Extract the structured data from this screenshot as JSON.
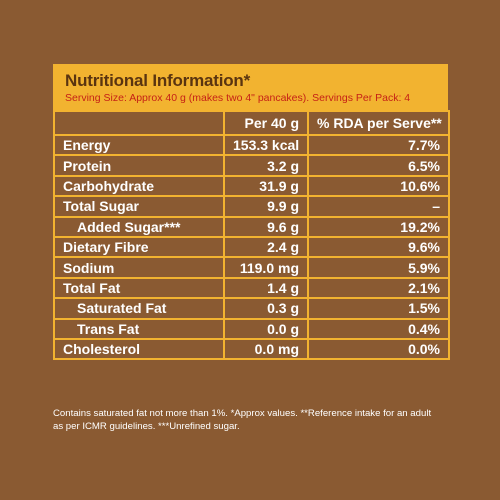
{
  "panel": {
    "title": "Nutritional Information*",
    "serving": "Serving Size: Approx 40 g (makes two 4\" pancakes). Servings Per Pack: 4"
  },
  "table": {
    "headers": [
      "",
      "Per 40 g",
      "% RDA per Serve**"
    ],
    "rows": [
      {
        "name": "Energy",
        "per": "153.3 kcal",
        "rda": "7.7%"
      },
      {
        "name": "Protein",
        "per": "3.2 g",
        "rda": "6.5%"
      },
      {
        "name": "Carbohydrate",
        "per": "31.9 g",
        "rda": "10.6%"
      },
      {
        "name": "Total Sugar",
        "per": "9.9 g",
        "rda": "–"
      },
      {
        "name": "Added Sugar***",
        "per": "9.6 g",
        "rda": "19.2%"
      },
      {
        "name": "Dietary Fibre",
        "per": "2.4 g",
        "rda": "9.6%"
      },
      {
        "name": "Sodium",
        "per": "119.0 mg",
        "rda": "5.9%"
      },
      {
        "name": "Total Fat",
        "per": "1.4 g",
        "rda": "2.1%"
      },
      {
        "name": "Saturated Fat",
        "per": "0.3 g",
        "rda": "1.5%"
      },
      {
        "name": "Trans Fat",
        "per": "0.0 g",
        "rda": "0.4%"
      },
      {
        "name": "Cholesterol",
        "per": "0.0 mg",
        "rda": "0.0%"
      }
    ]
  },
  "footer": {
    "line1": "Contains saturated fat not more than 1%. *Approx values. **Reference intake for an adult",
    "line2": "as per ICMR guidelines. ***Unrefined sugar."
  },
  "colors": {
    "background": "#8a5a32",
    "accent": "#f2b330",
    "title": "#5a3410",
    "serving_text": "#c62216"
  }
}
